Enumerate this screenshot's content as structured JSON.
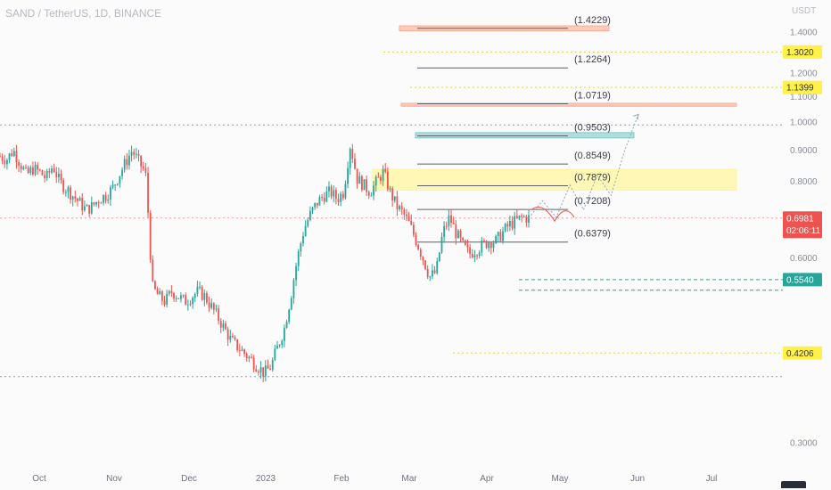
{
  "header": {
    "title": "SAND / TetherUS, 1D, BINANCE",
    "currency": "USDT"
  },
  "colors": {
    "up": "#26a69a",
    "down": "#ef5350",
    "fib_line": "#5d5f6b",
    "yellow_zone": "#fff59d",
    "teal_zone": "#80cbc4",
    "orange_zone": "#ffab91",
    "dotted_yellow": "#e6d43a",
    "dotted_teal": "#26a69a",
    "dotted_red": "#ef9a9a"
  },
  "chart_data": {
    "type": "candlestick",
    "y_scale": "log",
    "ylim": [
      0.28,
      1.48
    ],
    "y_ticks": [
      {
        "value": 1.4,
        "label": "1.4000"
      },
      {
        "value": 1.2,
        "label": "1.2000"
      },
      {
        "value": 1.1,
        "label": "1.1000"
      },
      {
        "value": 1.0,
        "label": "1.0000"
      },
      {
        "value": 0.9,
        "label": "0.9000"
      },
      {
        "value": 0.8,
        "label": "0.8000"
      },
      {
        "value": 0.6,
        "label": "0.6000"
      },
      {
        "value": 0.3,
        "label": "0.3000"
      }
    ],
    "x_ticks": [
      "Oct",
      "Nov",
      "Dec",
      "2023",
      "Feb",
      "Mar",
      "Apr",
      "May",
      "Jun",
      "Jul"
    ],
    "price_path": [
      0.88,
      0.87,
      0.9,
      0.86,
      0.82,
      0.84,
      0.83,
      0.81,
      0.85,
      0.8,
      0.78,
      0.76,
      0.74,
      0.72,
      0.73,
      0.75,
      0.76,
      0.78,
      0.82,
      0.86,
      0.9,
      0.86,
      0.83,
      0.54,
      0.52,
      0.51,
      0.53,
      0.52,
      0.51,
      0.52,
      0.53,
      0.52,
      0.5,
      0.48,
      0.46,
      0.44,
      0.43,
      0.42,
      0.41,
      0.4,
      0.39,
      0.4,
      0.43,
      0.46,
      0.52,
      0.6,
      0.67,
      0.71,
      0.74,
      0.76,
      0.77,
      0.75,
      0.77,
      0.92,
      0.81,
      0.79,
      0.77,
      0.8,
      0.83,
      0.77,
      0.73,
      0.71,
      0.68,
      0.64,
      0.6,
      0.56,
      0.57,
      0.66,
      0.7,
      0.66,
      0.63,
      0.61,
      0.62,
      0.63,
      0.64,
      0.64,
      0.66,
      0.68,
      0.69,
      0.7,
      0.6981
    ],
    "projection_path": [
      0.6981,
      0.745,
      0.7,
      0.79,
      0.72,
      0.82,
      0.76,
      0.9,
      1.03
    ],
    "fib_levels": [
      {
        "value": 1.4229,
        "label": "(1.4229)"
      },
      {
        "value": 1.2264,
        "label": "(1.2264)"
      },
      {
        "value": 1.0719,
        "label": "(1.0719)"
      },
      {
        "value": 0.9503,
        "label": "(0.9503)"
      },
      {
        "value": 0.8549,
        "label": "(0.8549)"
      },
      {
        "value": 0.7879,
        "label": "(0.7879)"
      },
      {
        "value": 0.7208,
        "label": "(0.7208)"
      },
      {
        "value": 0.6379,
        "label": "(0.6379)"
      }
    ],
    "zones": [
      {
        "name": "orange-top",
        "low": 1.41,
        "high": 1.436,
        "color": "orange"
      },
      {
        "name": "orange-mid",
        "low": 1.062,
        "high": 1.074,
        "color": "orange"
      },
      {
        "name": "teal",
        "low": 0.943,
        "high": 0.962,
        "color": "teal"
      },
      {
        "name": "yellow",
        "low": 0.775,
        "high": 0.838,
        "color": "yellow"
      }
    ],
    "horizontal_lines": [
      {
        "value": 1.302,
        "style": "dotted",
        "color": "yellow"
      },
      {
        "value": 1.1399,
        "style": "dotted",
        "color": "yellow"
      },
      {
        "value": 0.99,
        "style": "dotted",
        "color": "grey"
      },
      {
        "value": 0.6981,
        "style": "dotted",
        "color": "red"
      },
      {
        "value": 0.554,
        "style": "dashed",
        "color": "teal"
      },
      {
        "value": 0.5325,
        "style": "dashed",
        "color": "teal"
      },
      {
        "value": 0.4206,
        "style": "dotted",
        "color": "yellow"
      },
      {
        "value": 0.385,
        "style": "dotted",
        "color": "grey"
      }
    ],
    "price_badges": [
      {
        "value": 1.302,
        "label": "1.3020",
        "bg": "#fff14a",
        "fg": "#333333"
      },
      {
        "value": 1.1399,
        "label": "1.1399",
        "bg": "#fff14a",
        "fg": "#333333"
      },
      {
        "value": 0.6981,
        "label": "0.6981",
        "sub": "02:06:11",
        "bg": "#ef5350",
        "fg": "#ffffff"
      },
      {
        "value": 0.554,
        "label": "0.5540",
        "bg": "#26a69a",
        "fg": "#ffffff"
      },
      {
        "value": 0.4206,
        "label": "0.4206",
        "bg": "#fff14a",
        "fg": "#333333"
      }
    ]
  }
}
